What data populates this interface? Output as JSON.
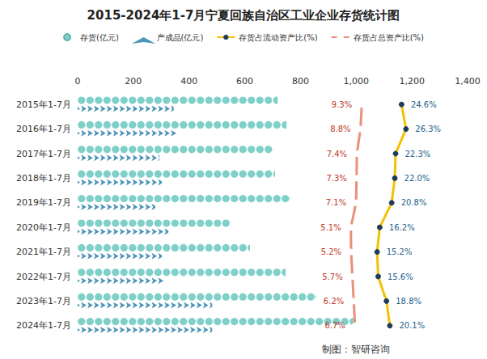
{
  "chart_data": {
    "type": "bar",
    "orientation": "horizontal",
    "title": "2015-2024年1-7月宁夏回族自治区工业企业存货统计图",
    "source": "制图：智研咨询",
    "categories": [
      "2015年1-7月",
      "2016年1-7月",
      "2017年1-7月",
      "2018年1-7月",
      "2019年1-7月",
      "2020年1-7月",
      "2021年1-7月",
      "2022年1-7月",
      "2023年1-7月",
      "2024年1-7月"
    ],
    "ylim": [
      0,
      1400
    ],
    "yticks": [
      0,
      200,
      400,
      600,
      800,
      1000,
      1200,
      1400
    ],
    "y2lim": [
      -100,
      50
    ],
    "grid": false,
    "legend": "top",
    "series": [
      {
        "name": "存货(亿元)",
        "type": "bar",
        "marker": "circle",
        "color": "#7fd0c8",
        "values": [
          718,
          750,
          703,
          709,
          764,
          546,
          619,
          747,
          857,
          990
        ]
      },
      {
        "name": "产成品(亿元)",
        "type": "bar",
        "marker": "arrow",
        "color": "#4d94b8",
        "values": [
          345,
          355,
          294,
          302,
          279,
          326,
          302,
          311,
          483,
          483
        ]
      },
      {
        "name": "存货占流动资产比(%)",
        "type": "line",
        "axis": "y2",
        "marker": "circle",
        "color": "#f2c200",
        "data_labels": true,
        "values": [
          24.6,
          26.3,
          22.3,
          22.0,
          20.8,
          16.2,
          15.2,
          15.6,
          18.8,
          20.1
        ],
        "value_labels": [
          "24.6%",
          "26.3%",
          "22.3%",
          "22.0%",
          "20.8%",
          "16.2%",
          "15.2%",
          "15.6%",
          "18.8%",
          "20.1%"
        ]
      },
      {
        "name": "存货占总资产比(%)",
        "type": "line",
        "axis": "y2",
        "marker": "emptyCircle",
        "color": "#e8907a",
        "data_labels": true,
        "values": [
          9.3,
          8.8,
          7.4,
          7.3,
          7.1,
          5.1,
          5.2,
          5.7,
          6.2,
          6.7
        ],
        "value_labels": [
          "9.3%",
          "8.8%",
          "7.4%",
          "7.3%",
          "7.1%",
          "5.1%",
          "5.2%",
          "5.7%",
          "6.2%",
          "6.7%"
        ]
      }
    ]
  }
}
